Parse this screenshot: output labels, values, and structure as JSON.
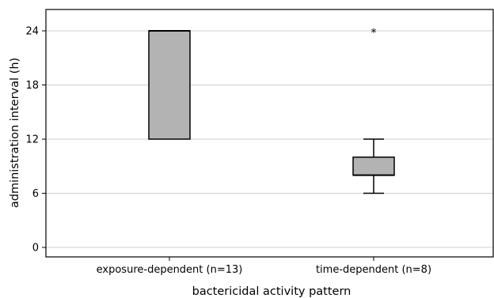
{
  "chart_data": {
    "type": "box",
    "title": "",
    "xlabel": "bactericidal activity pattern",
    "ylabel": "administration interval (h)",
    "ylim": [
      -2,
      26.5
    ],
    "yticks": [
      0,
      6,
      12,
      18,
      24
    ],
    "grid": true,
    "categories": [
      "exposure-dependent (n=13)",
      "time-dependent (n=8)"
    ],
    "boxes": [
      {
        "category": "exposure-dependent (n=13)",
        "whisker_low": 12,
        "q1": 12,
        "median": 24,
        "q3": 24,
        "whisker_high": 24,
        "outliers": []
      },
      {
        "category": "time-dependent (n=8)",
        "whisker_low": 6,
        "q1": 8,
        "median": 8,
        "q3": 10,
        "whisker_high": 12,
        "outliers": [
          24
        ]
      }
    ],
    "box_color": "#b3b3b3",
    "outlier_marker": "*"
  }
}
